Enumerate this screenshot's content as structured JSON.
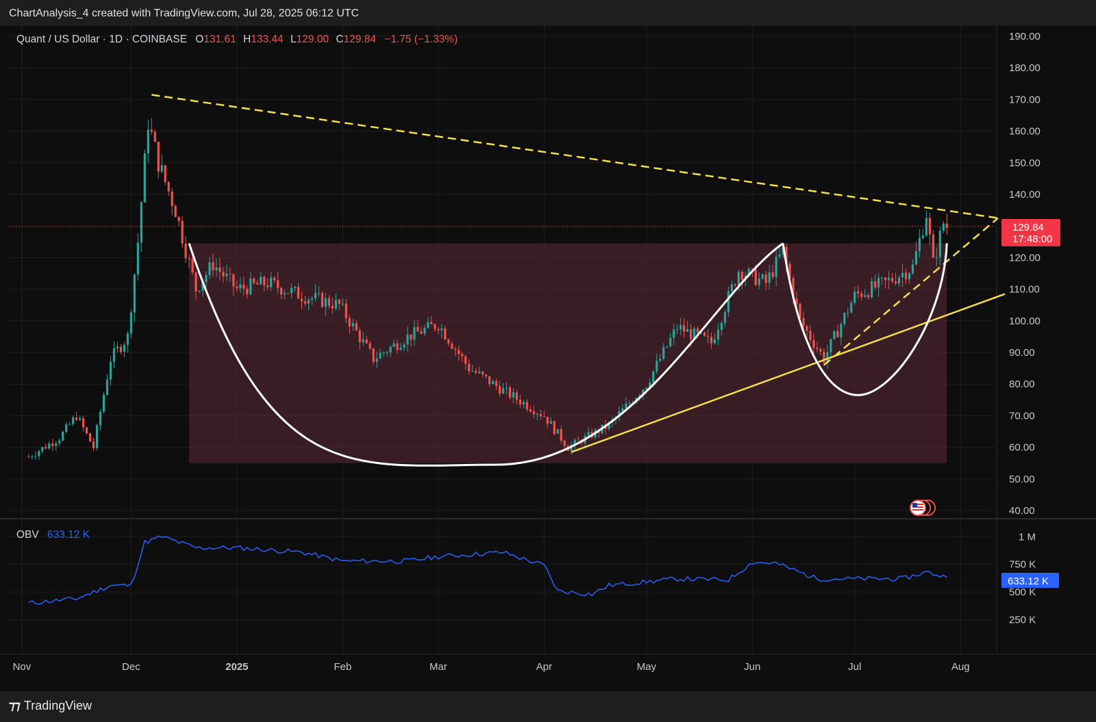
{
  "header": {
    "caption": "ChartAnalysis_4 created with TradingView.com, Jul 28, 2025 06:12 UTC"
  },
  "footer": {
    "brand": "TradingView",
    "brand_icon": "tradingview-logo-icon"
  },
  "legend": {
    "symbol": "Quant / US Dollar · 1D · COINBASE",
    "o_label": "O",
    "o_value": "131.61",
    "h_label": "H",
    "h_value": "133.44",
    "l_label": "L",
    "l_value": "129.00",
    "c_label": "C",
    "c_value": "129.84",
    "change": "−1.75 (−1.33%)"
  },
  "obv_legend": {
    "label": "OBV",
    "value": "633.12 K"
  },
  "price_tag": {
    "price": "129.84",
    "countdown": "17:48:00"
  },
  "obv_tag": "633.12 K",
  "colors": {
    "up": "#26a69a",
    "down": "#ef5350",
    "obv": "#2962ff",
    "trend": "#f5e04a",
    "cup": "#ffffff",
    "fill": "#5c2a38",
    "background": "#0e0e0e"
  },
  "chart_data": [
    {
      "type": "candlestick",
      "symbol": "QNTUSD",
      "timeframe": "1D",
      "exchange": "COINBASE",
      "ylim": [
        40,
        190
      ],
      "y_ticks": [
        "190.00",
        "180.00",
        "170.00",
        "160.00",
        "150.00",
        "140.00",
        "130.00",
        "120.00",
        "110.00",
        "100.00",
        "90.00",
        "80.00",
        "70.00",
        "60.00",
        "50.00",
        "40.00"
      ],
      "x_ticks": [
        "Nov",
        "Dec",
        "2025",
        "Feb",
        "Mar",
        "Apr",
        "May",
        "Jun",
        "Jul",
        "Aug"
      ],
      "last_close": 129.84,
      "close_path": [
        {
          "date": "2024-11-01",
          "close": 57
        },
        {
          "date": "2024-11-10",
          "close": 63
        },
        {
          "date": "2024-11-15",
          "close": 70
        },
        {
          "date": "2024-11-20",
          "close": 60
        },
        {
          "date": "2024-11-25",
          "close": 88
        },
        {
          "date": "2024-11-30",
          "close": 95
        },
        {
          "date": "2024-12-03",
          "close": 125
        },
        {
          "date": "2024-12-06",
          "close": 163
        },
        {
          "date": "2024-12-09",
          "close": 150
        },
        {
          "date": "2024-12-14",
          "close": 135
        },
        {
          "date": "2024-12-20",
          "close": 110
        },
        {
          "date": "2024-12-25",
          "close": 118
        },
        {
          "date": "2025-01-01",
          "close": 110
        },
        {
          "date": "2025-01-10",
          "close": 112
        },
        {
          "date": "2025-01-20",
          "close": 108
        },
        {
          "date": "2025-01-31",
          "close": 105
        },
        {
          "date": "2025-02-10",
          "close": 88
        },
        {
          "date": "2025-02-20",
          "close": 95
        },
        {
          "date": "2025-03-01",
          "close": 99
        },
        {
          "date": "2025-03-10",
          "close": 85
        },
        {
          "date": "2025-03-20",
          "close": 78
        },
        {
          "date": "2025-04-01",
          "close": 70
        },
        {
          "date": "2025-04-08",
          "close": 60
        },
        {
          "date": "2025-04-20",
          "close": 67
        },
        {
          "date": "2025-05-01",
          "close": 80
        },
        {
          "date": "2025-05-10",
          "close": 98
        },
        {
          "date": "2025-05-20",
          "close": 93
        },
        {
          "date": "2025-05-28",
          "close": 116
        },
        {
          "date": "2025-06-05",
          "close": 112
        },
        {
          "date": "2025-06-10",
          "close": 122
        },
        {
          "date": "2025-06-15",
          "close": 100
        },
        {
          "date": "2025-06-22",
          "close": 88
        },
        {
          "date": "2025-07-01",
          "close": 108
        },
        {
          "date": "2025-07-10",
          "close": 112
        },
        {
          "date": "2025-07-18",
          "close": 117
        },
        {
          "date": "2025-07-22",
          "close": 134
        },
        {
          "date": "2025-07-24",
          "close": 118
        },
        {
          "date": "2025-07-27",
          "close": 131
        },
        {
          "date": "2025-07-28",
          "close": 129.84
        }
      ]
    },
    {
      "type": "line",
      "name": "OBV",
      "ylim": [
        0,
        1150000
      ],
      "y_ticks": [
        "1 M",
        "750 K",
        "500 K",
        "250 K"
      ],
      "last_value": "633.12 K",
      "points": [
        {
          "date": "2024-11-01",
          "value": 400000
        },
        {
          "date": "2024-11-15",
          "value": 440000
        },
        {
          "date": "2024-11-25",
          "value": 560000
        },
        {
          "date": "2024-12-01",
          "value": 560000
        },
        {
          "date": "2024-12-05",
          "value": 950000
        },
        {
          "date": "2024-12-10",
          "value": 1000000
        },
        {
          "date": "2024-12-20",
          "value": 900000
        },
        {
          "date": "2025-01-01",
          "value": 900000
        },
        {
          "date": "2025-01-20",
          "value": 860000
        },
        {
          "date": "2025-02-01",
          "value": 780000
        },
        {
          "date": "2025-02-20",
          "value": 780000
        },
        {
          "date": "2025-03-01",
          "value": 820000
        },
        {
          "date": "2025-03-20",
          "value": 860000
        },
        {
          "date": "2025-04-01",
          "value": 740000
        },
        {
          "date": "2025-04-05",
          "value": 510000
        },
        {
          "date": "2025-04-15",
          "value": 480000
        },
        {
          "date": "2025-04-20",
          "value": 560000
        },
        {
          "date": "2025-05-10",
          "value": 620000
        },
        {
          "date": "2025-05-25",
          "value": 610000
        },
        {
          "date": "2025-06-01",
          "value": 770000
        },
        {
          "date": "2025-06-08",
          "value": 760000
        },
        {
          "date": "2025-06-20",
          "value": 620000
        },
        {
          "date": "2025-07-01",
          "value": 620000
        },
        {
          "date": "2025-07-15",
          "value": 620000
        },
        {
          "date": "2025-07-22",
          "value": 680000
        },
        {
          "date": "2025-07-28",
          "value": 633120
        }
      ]
    }
  ]
}
